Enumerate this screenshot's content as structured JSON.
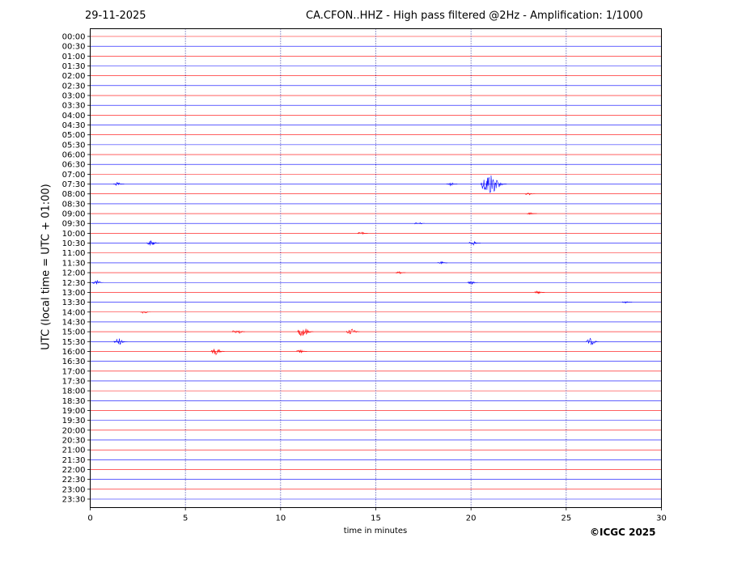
{
  "header": {
    "date": "29-11-2025",
    "title": "CA.CFON..HHZ - High pass filtered @2Hz - Amplification: 1/1000"
  },
  "footer": {
    "copyright": "©ICGC 2025"
  },
  "colors": {
    "trace_a": "#ff0000",
    "trace_b": "#0000ff",
    "grid": "#00008b",
    "frame": "#000000"
  },
  "chart_data": {
    "type": "line",
    "title": "CA.CFON..HHZ - High pass filtered @2Hz - Amplification: 1/1000",
    "xlabel": "time in minutes",
    "ylabel": "UTC (local time = UTC + 01:00)",
    "xlim": [
      0,
      30
    ],
    "x_ticks": [
      "0",
      "5",
      "10",
      "15",
      "20",
      "25",
      "30"
    ],
    "grid": "vertical dotted at 5, 10, 15, 20, 25",
    "row_labels": [
      "00:00",
      "00:30",
      "01:00",
      "01:30",
      "02:00",
      "02:30",
      "03:00",
      "03:30",
      "04:00",
      "04:30",
      "05:00",
      "05:30",
      "06:00",
      "06:30",
      "07:00",
      "07:30",
      "08:00",
      "08:30",
      "09:00",
      "09:30",
      "10:00",
      "10:30",
      "11:00",
      "11:30",
      "12:00",
      "12:30",
      "13:00",
      "13:30",
      "14:00",
      "14:30",
      "15:00",
      "15:30",
      "16:00",
      "16:30",
      "17:00",
      "17:30",
      "18:00",
      "18:30",
      "19:00",
      "19:30",
      "20:00",
      "20:30",
      "21:00",
      "21:30",
      "22:00",
      "22:30",
      "23:00",
      "23:30"
    ],
    "row_color_pattern": "alternating red/blue starting red at 00:00",
    "events": [
      {
        "row": "07:30",
        "minute": 21.2,
        "amplitude": 1.0
      },
      {
        "row": "07:30",
        "minute": 1.5,
        "amplitude": 0.15
      },
      {
        "row": "07:30",
        "minute": 19.0,
        "amplitude": 0.15
      },
      {
        "row": "10:30",
        "minute": 3.3,
        "amplitude": 0.25
      },
      {
        "row": "10:30",
        "minute": 20.2,
        "amplitude": 0.2
      },
      {
        "row": "12:30",
        "minute": 0.4,
        "amplitude": 0.2
      },
      {
        "row": "12:30",
        "minute": 20.1,
        "amplitude": 0.15
      },
      {
        "row": "15:00",
        "minute": 7.8,
        "amplitude": 0.25
      },
      {
        "row": "15:00",
        "minute": 11.3,
        "amplitude": 0.45
      },
      {
        "row": "15:00",
        "minute": 13.8,
        "amplitude": 0.3
      },
      {
        "row": "15:30",
        "minute": 1.6,
        "amplitude": 0.3
      },
      {
        "row": "15:30",
        "minute": 26.4,
        "amplitude": 0.3
      },
      {
        "row": "16:00",
        "minute": 6.7,
        "amplitude": 0.3
      },
      {
        "row": "16:00",
        "minute": 11.1,
        "amplitude": 0.15
      },
      {
        "row": "10:00",
        "minute": 14.3,
        "amplitude": 0.12
      },
      {
        "row": "09:30",
        "minute": 17.3,
        "amplitude": 0.12
      },
      {
        "row": "14:00",
        "minute": 2.9,
        "amplitude": 0.12
      },
      {
        "row": "13:00",
        "minute": 23.6,
        "amplitude": 0.12
      },
      {
        "row": "12:00",
        "minute": 16.3,
        "amplitude": 0.1
      },
      {
        "row": "11:30",
        "minute": 18.5,
        "amplitude": 0.1
      },
      {
        "row": "13:30",
        "minute": 28.2,
        "amplitude": 0.1
      },
      {
        "row": "09:00",
        "minute": 23.2,
        "amplitude": 0.1
      },
      {
        "row": "08:00",
        "minute": 23.1,
        "amplitude": 0.1
      }
    ]
  }
}
